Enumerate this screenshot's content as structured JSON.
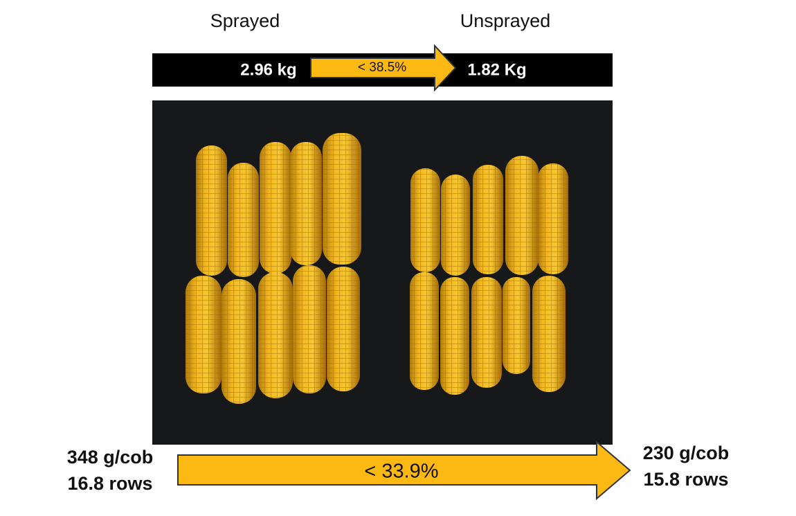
{
  "header": {
    "left_label": "Sprayed",
    "right_label": "Unsprayed"
  },
  "top_bar": {
    "left": "2.96 kg",
    "arrow": "< 38.5%",
    "right": "1.82 Kg"
  },
  "bottom": {
    "left": [
      "348 g/cob",
      "16.8 rows"
    ],
    "arrow": "< 33.9%",
    "right": [
      "230 g/cob",
      "15.8 rows"
    ]
  }
}
